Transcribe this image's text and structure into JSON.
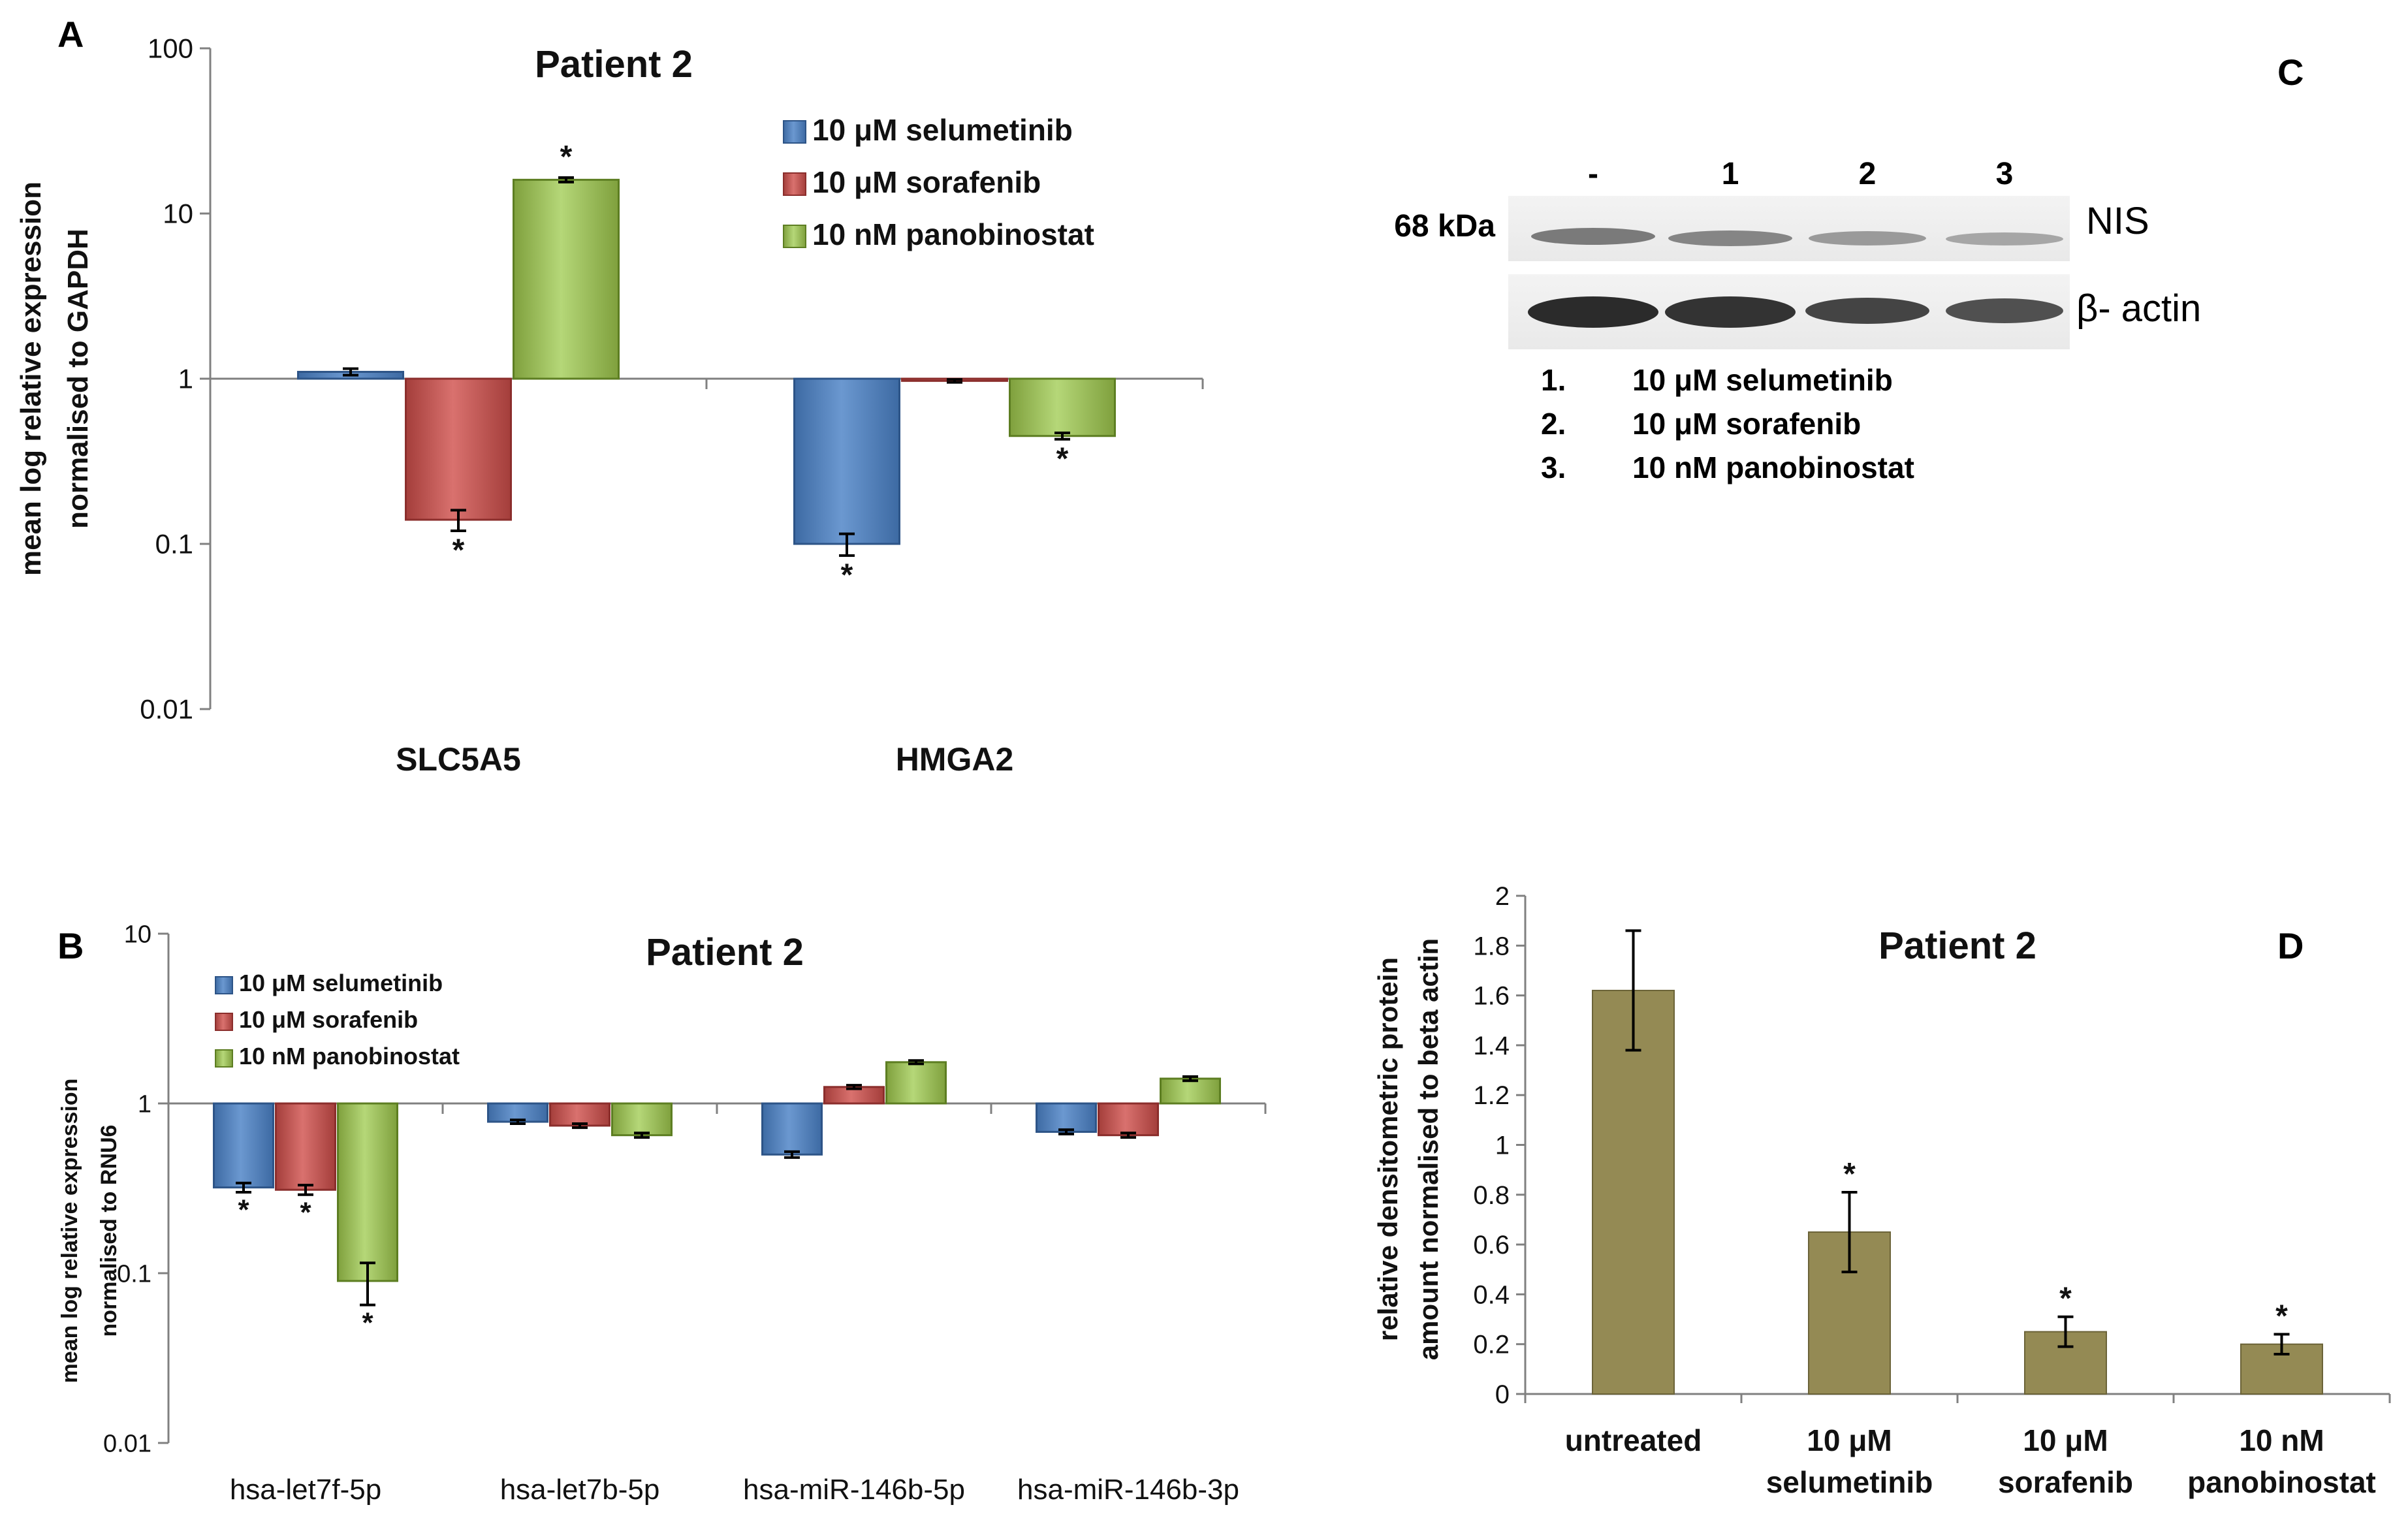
{
  "colors": {
    "selumetinib": "#4f81bd",
    "selumetinib_dark": "#2d5487",
    "sorafenib": "#c0504d",
    "sorafenib_dark": "#8b2e2c",
    "panobinostat": "#9bbb59",
    "panobinostat_dark": "#5d7e22",
    "olive": "#948a54",
    "olive_dark": "#6b6338",
    "axis": "#808080",
    "text": "#111111"
  },
  "chart_data": [
    {
      "panel": "A",
      "type": "bar",
      "title": "Patient 2",
      "ylabel": [
        "mean log relative expression",
        "normalised to GAPDH"
      ],
      "yscale": "log",
      "ylim": [
        0.01,
        100
      ],
      "yticks": [
        "0.01",
        "0.1",
        "1",
        "10",
        "100"
      ],
      "baseline": 1,
      "categories": [
        "SLC5A5",
        "HMGA2"
      ],
      "series": [
        {
          "name": "10 μM selumetinib",
          "color_key": "selumetinib",
          "values": [
            1.1,
            0.1
          ],
          "err": [
            0.05,
            0.015
          ],
          "sig": [
            "",
            "*"
          ]
        },
        {
          "name": "10 μM sorafenib",
          "color_key": "sorafenib",
          "values": [
            0.14,
            0.97
          ],
          "err": [
            0.02,
            0.02
          ],
          "sig": [
            "*",
            ""
          ]
        },
        {
          "name": "10 nM panobinostat",
          "color_key": "panobinostat",
          "values": [
            16,
            0.45
          ],
          "err": [
            0.5,
            0.02
          ],
          "sig": [
            "*",
            "*"
          ]
        }
      ],
      "legend": "top-right"
    },
    {
      "panel": "B",
      "type": "bar",
      "title": "Patient 2",
      "ylabel": [
        "mean log relative expression",
        "normalised to RNU6"
      ],
      "yscale": "log",
      "ylim": [
        0.01,
        10
      ],
      "yticks": [
        "0.01",
        "0.1",
        "1",
        "10"
      ],
      "baseline": 1,
      "categories": [
        "hsa-let7f-5p",
        "hsa-let7b-5p",
        "hsa-miR-146b-5p",
        "hsa-miR-146b-3p"
      ],
      "series": [
        {
          "name": "10 μM selumetinib",
          "color_key": "selumetinib",
          "values": [
            0.32,
            0.78,
            0.5,
            0.68
          ],
          "err": [
            0.02,
            0.02,
            0.02,
            0.02
          ],
          "sig": [
            "*",
            "",
            "",
            ""
          ]
        },
        {
          "name": "10 μM sorafenib",
          "color_key": "sorafenib",
          "values": [
            0.31,
            0.74,
            1.25,
            0.65
          ],
          "err": [
            0.02,
            0.02,
            0.03,
            0.02
          ],
          "sig": [
            "*",
            "",
            "",
            ""
          ]
        },
        {
          "name": "10 nM panobinostat",
          "color_key": "panobinostat",
          "values": [
            0.09,
            0.65,
            1.75,
            1.4
          ],
          "err": [
            0.025,
            0.02,
            0.04,
            0.04
          ],
          "sig": [
            "*",
            "",
            "",
            ""
          ]
        }
      ],
      "legend": "top-left"
    },
    {
      "panel": "D",
      "type": "bar",
      "title": "Patient 2",
      "ylabel": [
        "relative densitometric protein",
        "amount normalised to beta actin"
      ],
      "yscale": "linear",
      "ylim": [
        0,
        2
      ],
      "yticks": [
        "0",
        "0.2",
        "0.4",
        "0.6",
        "0.8",
        "1",
        "1.2",
        "1.4",
        "1.6",
        "1.8",
        "2"
      ],
      "categories": [
        [
          "untreated"
        ],
        [
          "10 μM",
          "selumetinib"
        ],
        [
          "10 μM",
          "sorafenib"
        ],
        [
          "10 nM",
          "panobinostat"
        ]
      ],
      "values": [
        1.62,
        0.65,
        0.25,
        0.2
      ],
      "err": [
        0.24,
        0.16,
        0.06,
        0.04
      ],
      "sig": [
        "",
        "*",
        "*",
        "*"
      ]
    }
  ],
  "panel_labels": {
    "a": "A",
    "b": "B",
    "c": "C",
    "d": "D"
  },
  "western_blot": {
    "lanes": [
      "-",
      "1",
      "2",
      "3"
    ],
    "mw_label": "68 kDa",
    "band_nis": "NIS",
    "band_actin": "β- actin",
    "key": [
      {
        "num": "1.",
        "text": "10 μM selumetinib"
      },
      {
        "num": "2.",
        "text": "10 μM sorafenib"
      },
      {
        "num": "3.",
        "text": "10 nM panobinostat"
      }
    ]
  }
}
